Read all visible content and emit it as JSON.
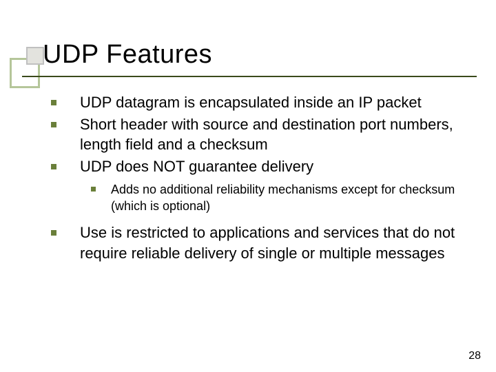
{
  "title": "UDP Features",
  "colors": {
    "decor_large_border": "#b5c69a",
    "decor_large_fill": "#ffffff",
    "decor_small_border": "#c0c0c0",
    "decor_small_fill": "#e3e3de",
    "title_line": "#3a4a1a",
    "bullet": "#6a7f3a",
    "text": "#000000",
    "background": "#ffffff"
  },
  "typography": {
    "title_fontsize": 38,
    "level1_fontsize": 22,
    "level2_fontsize": 18,
    "pagenum_fontsize": 16,
    "font_family": "Verdana"
  },
  "bullets": [
    {
      "level": 1,
      "text": "UDP datagram is encapsulated inside an IP packet"
    },
    {
      "level": 1,
      "text": "Short header with source and destination port numbers, length field and a checksum"
    },
    {
      "level": 1,
      "text": "UDP does NOT guarantee delivery"
    },
    {
      "level": 2,
      "text": "Adds no additional reliability mechanisms except for checksum (which is optional)"
    },
    {
      "level": 1,
      "text": "Use is restricted to applications and services that do not require reliable delivery of single or multiple messages"
    }
  ],
  "page_number": "28"
}
